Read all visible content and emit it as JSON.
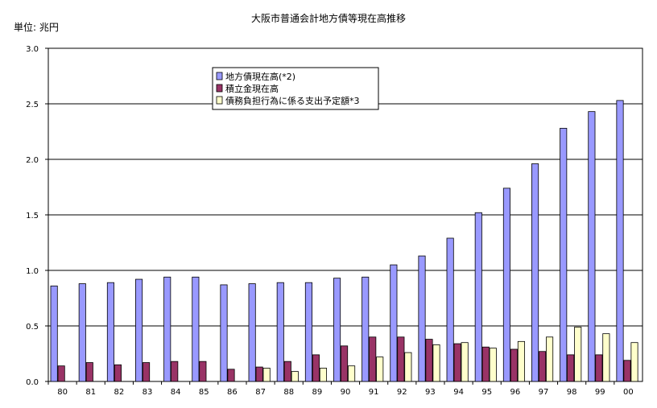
{
  "chart_data": {
    "type": "bar",
    "title": "大阪市普通会計地方債等現在高推移",
    "unit_label": "単位: 兆円",
    "xlabel": "",
    "ylabel": "",
    "ylim": [
      0,
      3.0
    ],
    "yticks": [
      "0.0",
      "0.5",
      "1.0",
      "1.5",
      "2.0",
      "2.5",
      "3.0"
    ],
    "ytick_values": [
      0,
      0.5,
      1.0,
      1.5,
      2.0,
      2.5,
      3.0
    ],
    "grid": true,
    "legend_position": "top-center",
    "categories": [
      "80",
      "81",
      "82",
      "83",
      "84",
      "85",
      "86",
      "87",
      "88",
      "89",
      "90",
      "91",
      "92",
      "93",
      "94",
      "95",
      "96",
      "97",
      "98",
      "99",
      "00"
    ],
    "series": [
      {
        "name": "地方債現在高(*2)",
        "color": "#9999ff",
        "values": [
          0.86,
          0.88,
          0.89,
          0.92,
          0.94,
          0.94,
          0.87,
          0.88,
          0.89,
          0.89,
          0.93,
          0.94,
          1.05,
          1.13,
          1.29,
          1.52,
          1.74,
          1.96,
          2.28,
          2.43,
          2.53
        ]
      },
      {
        "name": "積立金現在高",
        "color": "#993366",
        "values": [
          0.14,
          0.17,
          0.15,
          0.17,
          0.18,
          0.18,
          0.11,
          0.13,
          0.18,
          0.24,
          0.32,
          0.4,
          0.4,
          0.38,
          0.34,
          0.31,
          0.29,
          0.27,
          0.24,
          0.24,
          0.19
        ]
      },
      {
        "name": "債務負担行為に係る支出予定額*3",
        "color": "#ffffcc",
        "values": [
          null,
          null,
          null,
          null,
          null,
          null,
          null,
          0.12,
          0.09,
          0.12,
          0.14,
          0.22,
          0.26,
          0.33,
          0.35,
          0.3,
          0.36,
          0.4,
          0.49,
          0.43,
          0.35
        ]
      }
    ]
  }
}
